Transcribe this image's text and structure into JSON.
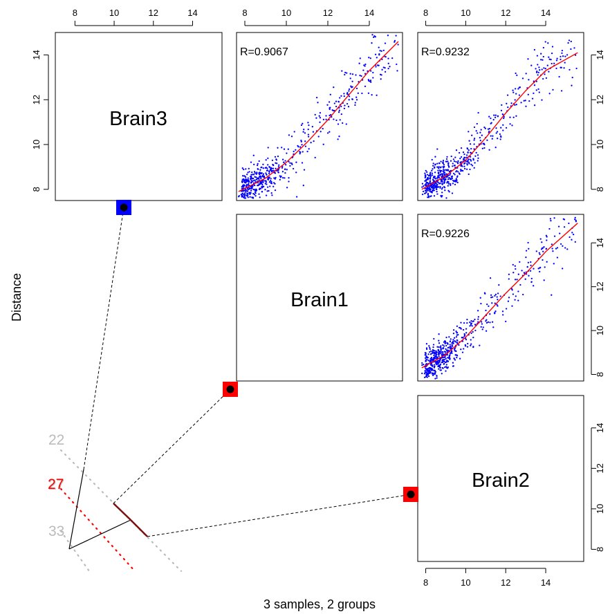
{
  "figure": {
    "xlabel": "3 samples, 2 groups",
    "ylabel": "Distance"
  },
  "colors": {
    "points": "#0000ff",
    "fit": "#ff0000",
    "group1": "#0000ff",
    "group2": "#ff0000",
    "gray": "#bbbbbb",
    "branch": "#7a1010"
  },
  "chart_data": [
    {
      "type": "label-panel",
      "label": "Brain3"
    },
    {
      "type": "scatter",
      "x_sample": "Brain1",
      "y_sample": "Brain3",
      "annotation": "R=0.9067",
      "xlim": [
        7.6,
        15.6
      ],
      "ylim": [
        7.5,
        15.0
      ],
      "xticks": [
        8,
        10,
        12,
        14
      ],
      "yticks": [
        8,
        10,
        12,
        14
      ],
      "fit": [
        [
          7.7,
          7.9
        ],
        [
          9,
          8.5
        ],
        [
          10,
          9.2
        ],
        [
          11,
          10.1
        ],
        [
          12,
          11.1
        ],
        [
          13,
          12.2
        ],
        [
          14,
          13.3
        ],
        [
          15.4,
          14.6
        ]
      ],
      "n_points": 600,
      "point_color": "blue",
      "fit_color": "red"
    },
    {
      "type": "scatter",
      "x_sample": "Brain2",
      "y_sample": "Brain3",
      "annotation": "R=0.9232",
      "xlim": [
        7.6,
        15.9
      ],
      "ylim": [
        7.5,
        15.0
      ],
      "xticks": [
        8,
        10,
        12,
        14
      ],
      "yticks": [
        8,
        10,
        12,
        14
      ],
      "fit": [
        [
          7.8,
          8.0
        ],
        [
          9,
          8.6
        ],
        [
          10,
          9.3
        ],
        [
          11,
          10.3
        ],
        [
          12,
          11.4
        ],
        [
          13,
          12.4
        ],
        [
          14,
          13.3
        ],
        [
          15.6,
          14.1
        ]
      ],
      "n_points": 600,
      "point_color": "blue",
      "fit_color": "red"
    },
    {
      "type": "label-panel",
      "label": "Brain1"
    },
    {
      "type": "scatter",
      "x_sample": "Brain2",
      "y_sample": "Brain1",
      "annotation": "R=0.9226",
      "xlim": [
        7.6,
        15.9
      ],
      "ylim": [
        7.7,
        15.3
      ],
      "xticks": [
        8,
        10,
        12,
        14
      ],
      "yticks": [
        8,
        10,
        12,
        14
      ],
      "fit": [
        [
          7.8,
          8.3
        ],
        [
          9,
          8.9
        ],
        [
          10,
          9.7
        ],
        [
          11,
          10.7
        ],
        [
          12,
          11.7
        ],
        [
          13,
          12.6
        ],
        [
          14,
          13.6
        ],
        [
          15.6,
          14.9
        ]
      ],
      "n_points": 600,
      "point_color": "blue",
      "fit_color": "red"
    },
    {
      "type": "label-panel",
      "label": "Brain2"
    }
  ],
  "axes": {
    "top": [
      [
        "8",
        "10",
        "12",
        "14"
      ],
      [
        "8",
        "10",
        "12",
        "14"
      ],
      [
        "8",
        "10",
        "12",
        "14"
      ]
    ],
    "left": [
      "8",
      "10",
      "12",
      "14"
    ],
    "right": [
      [
        "8",
        "10",
        "12",
        "14"
      ],
      [
        "8",
        "10",
        "12",
        "14"
      ],
      [
        "8",
        "10",
        "12",
        "14"
      ]
    ],
    "bottom": [
      "8",
      "10",
      "12",
      "14"
    ]
  },
  "dendrogram": {
    "levels": [
      "22",
      "27",
      "33"
    ],
    "level_colors": [
      "gray",
      "red",
      "gray"
    ],
    "leaves": [
      {
        "sample": "Brain3",
        "marker_color": "blue"
      },
      {
        "sample": "Brain1",
        "marker_color": "red"
      },
      {
        "sample": "Brain2",
        "marker_color": "red"
      }
    ]
  }
}
